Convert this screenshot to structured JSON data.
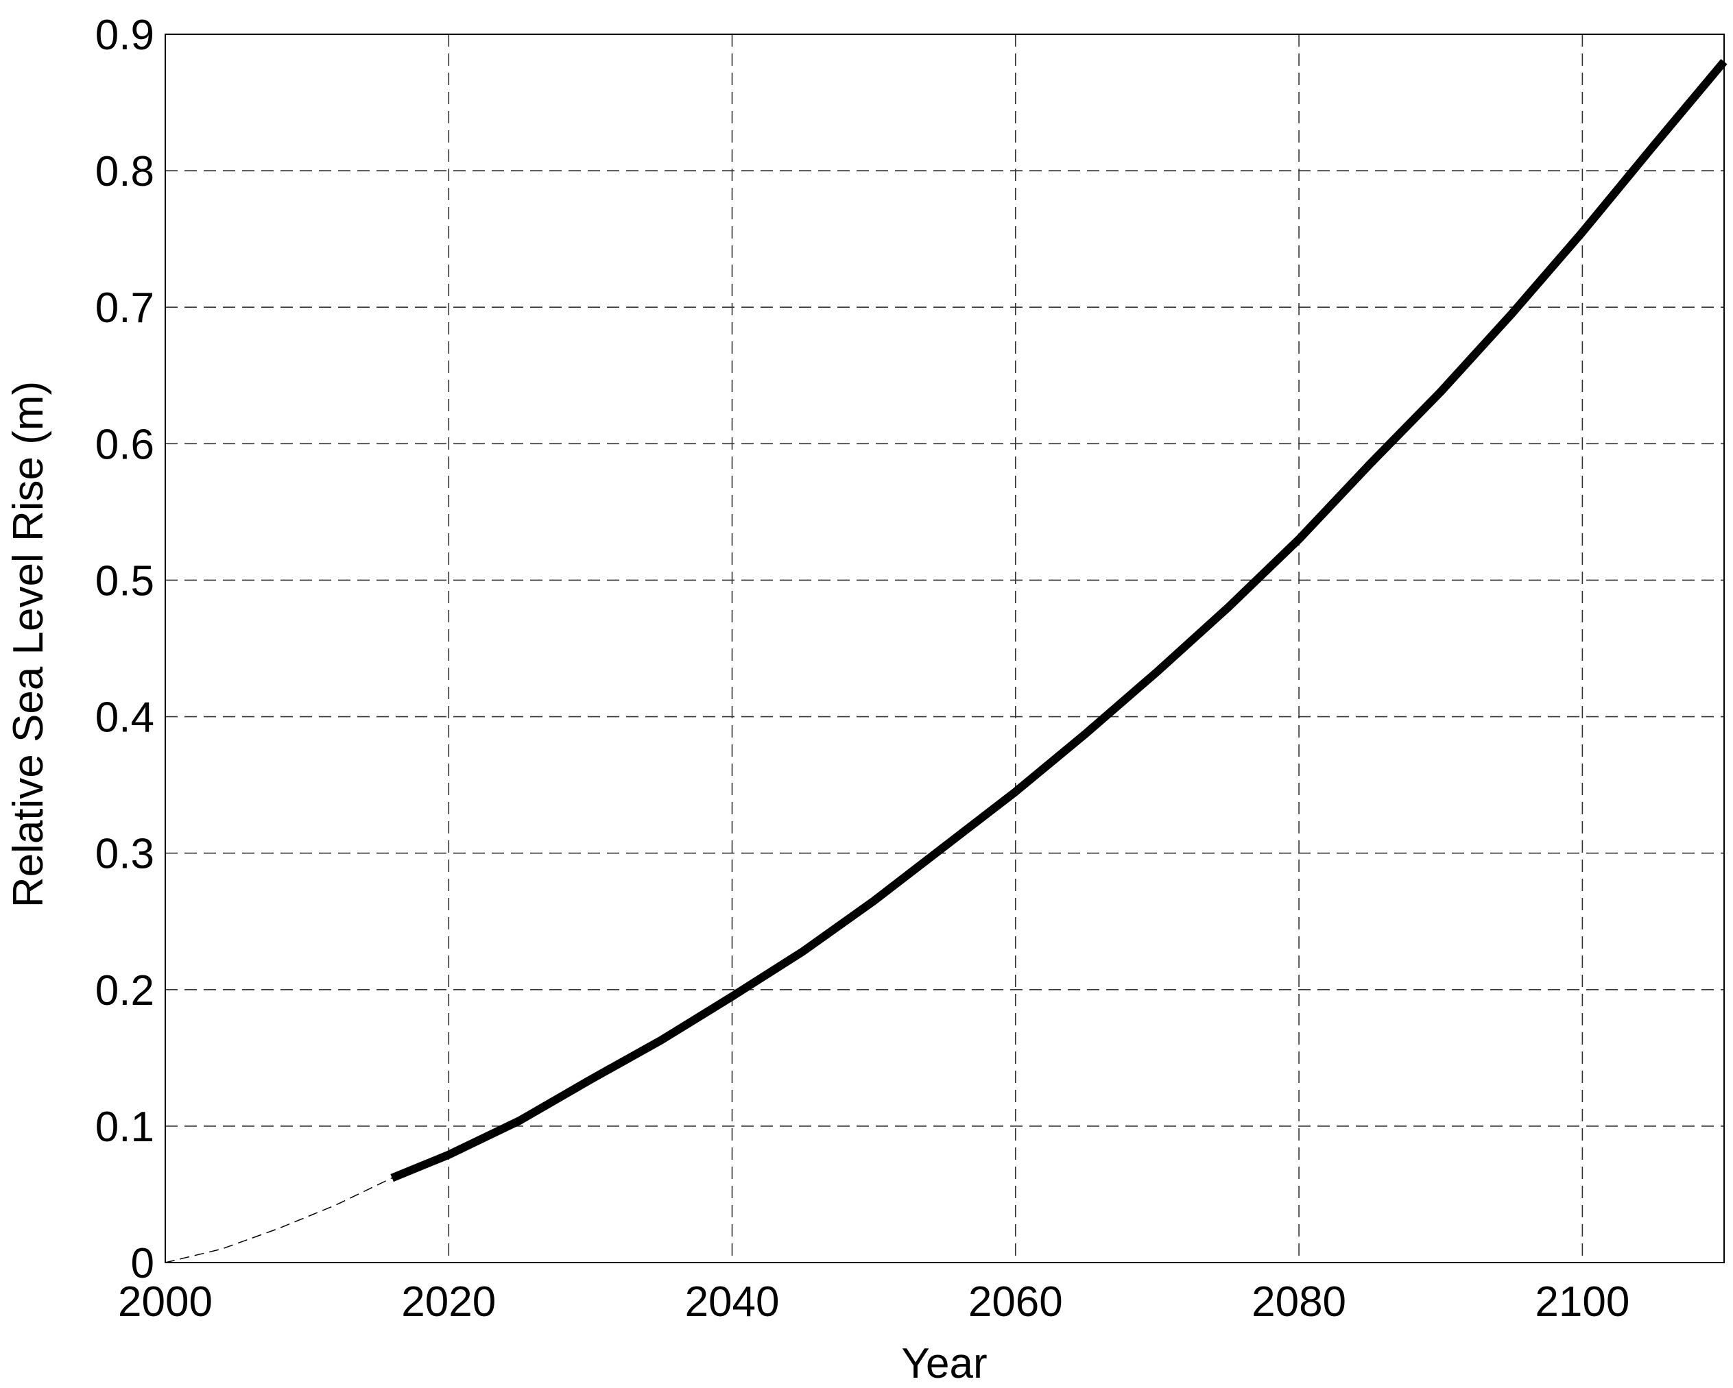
{
  "chart_data": {
    "type": "line",
    "xlabel": "Year",
    "ylabel": "Relative Sea Level Rise (m)",
    "xlim": [
      2000,
      2110
    ],
    "xticks": [
      2000,
      2020,
      2040,
      2060,
      2080,
      2100
    ],
    "ylim": [
      0,
      0.9
    ],
    "yticks": [
      0,
      0.1,
      0.2,
      0.3,
      0.4,
      0.5,
      0.6,
      0.7,
      0.8,
      0.9
    ],
    "grid": true,
    "series": [
      {
        "color": "#000000",
        "style": "dashed",
        "width": 1.5,
        "x": [
          2000,
          2004,
          2008,
          2012,
          2016
        ],
        "values": [
          0,
          0.01,
          0.025,
          0.042,
          0.062
        ]
      },
      {
        "color": "#000000",
        "style": "solid",
        "width": 12,
        "x": [
          2016,
          2020,
          2025,
          2030,
          2035,
          2040,
          2045,
          2050,
          2055,
          2060,
          2065,
          2070,
          2075,
          2080,
          2085,
          2090,
          2095,
          2100,
          2105,
          2110
        ],
        "values": [
          0.062,
          0.079,
          0.104,
          0.134,
          0.163,
          0.195,
          0.228,
          0.265,
          0.305,
          0.345,
          0.388,
          0.433,
          0.48,
          0.53,
          0.585,
          0.638,
          0.695,
          0.755,
          0.818,
          0.88
        ]
      }
    ]
  }
}
